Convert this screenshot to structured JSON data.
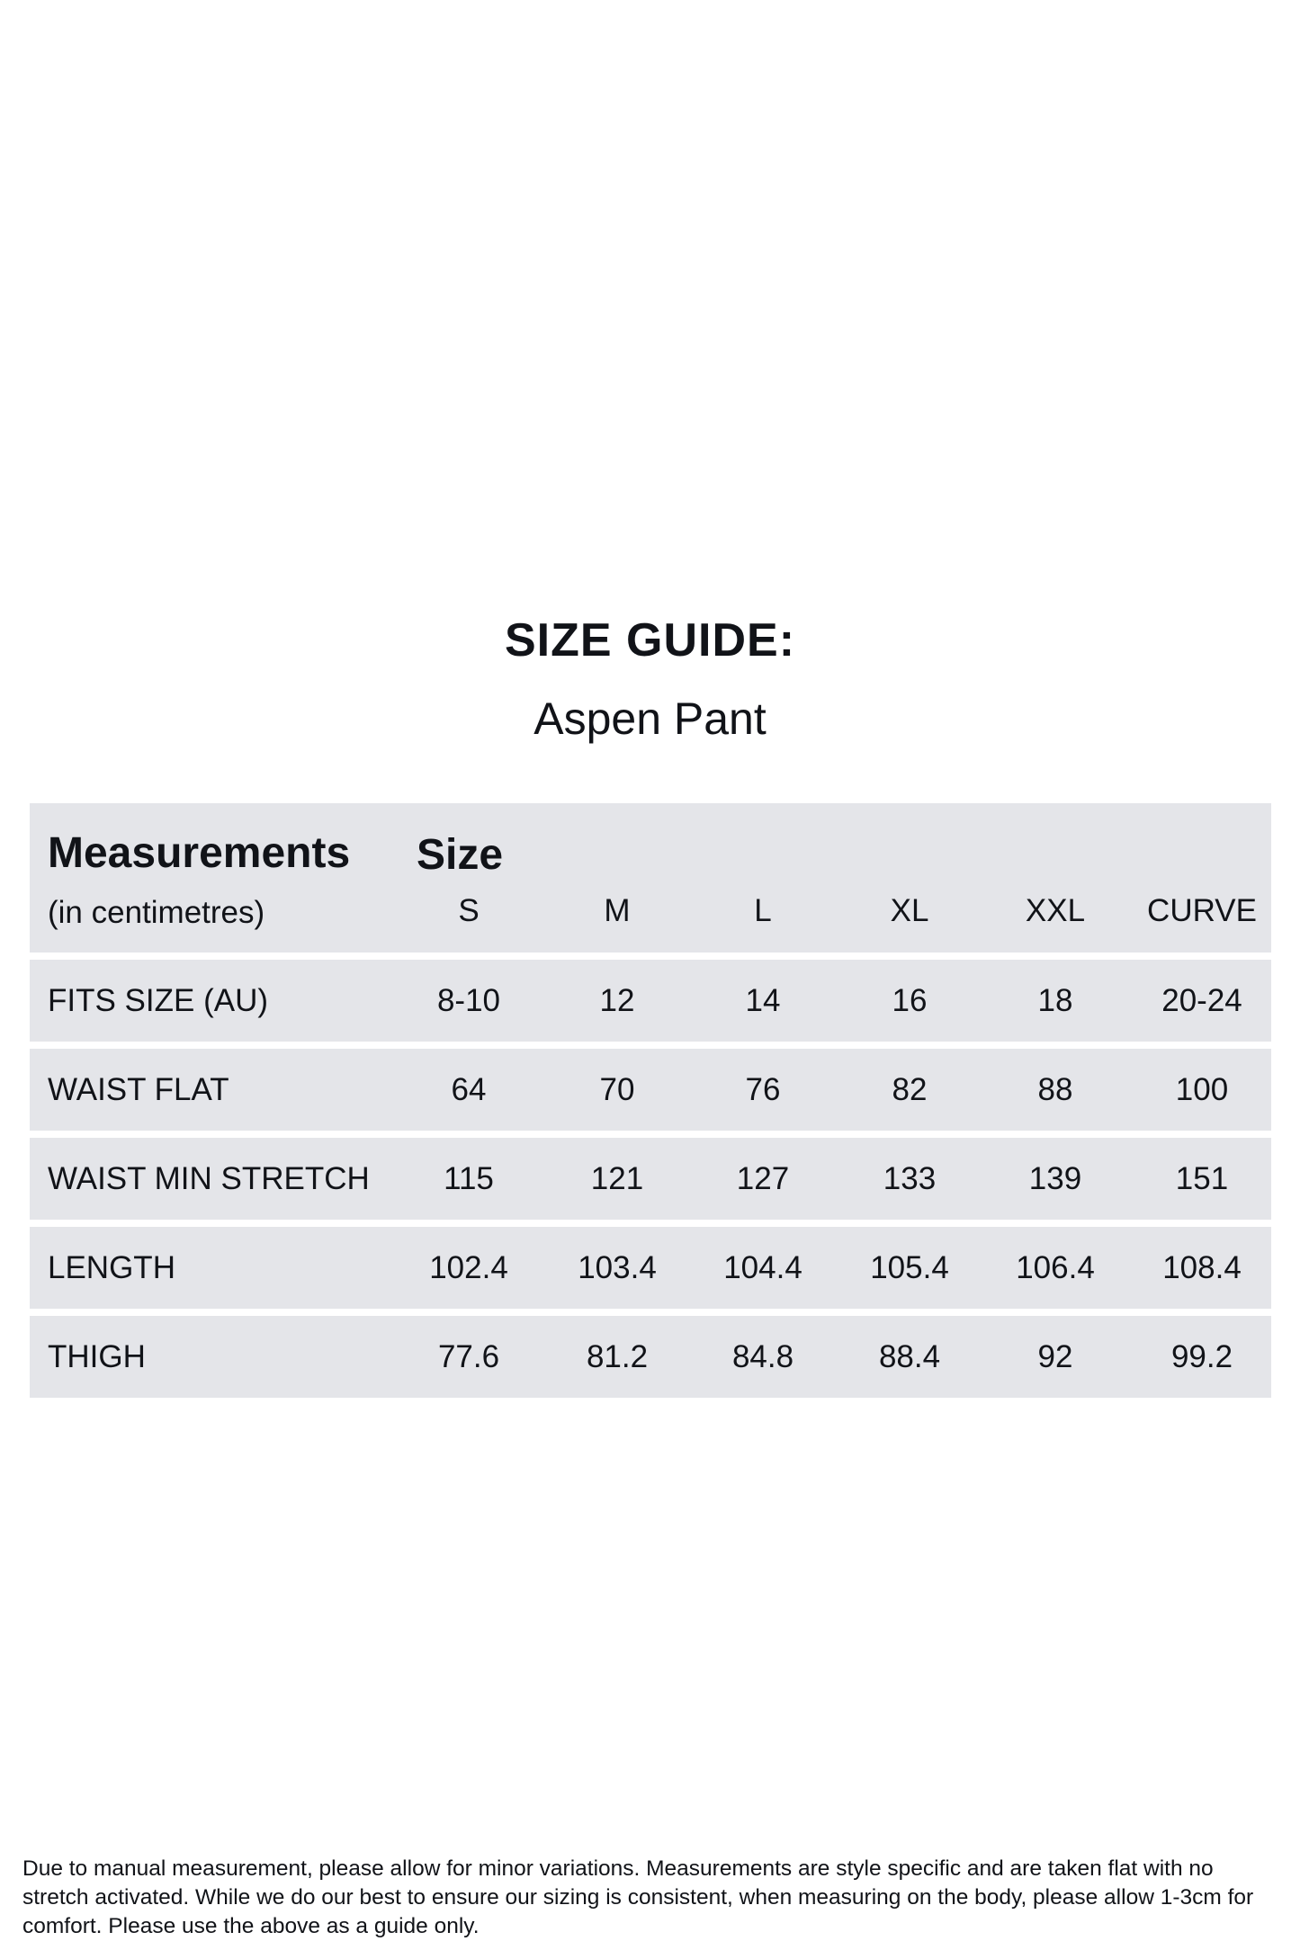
{
  "title": "SIZE GUIDE:",
  "subtitle": "Aspen Pant",
  "table": {
    "header_label": "Measurements",
    "header_unit": "(in centimetres)",
    "size_label": "Size",
    "sizes": [
      "S",
      "M",
      "L",
      "XL",
      "XXL",
      "CURVE"
    ],
    "rows": [
      {
        "label": "FITS SIZE (AU)",
        "values": [
          "8-10",
          "12",
          "14",
          "16",
          "18",
          "20-24"
        ]
      },
      {
        "label": "WAIST FLAT",
        "values": [
          "64",
          "70",
          "76",
          "82",
          "88",
          "100"
        ]
      },
      {
        "label": "WAIST MIN STRETCH",
        "values": [
          "115",
          "121",
          "127",
          "133",
          "139",
          "151"
        ]
      },
      {
        "label": "LENGTH",
        "values": [
          "102.4",
          "103.4",
          "104.4",
          "105.4",
          "106.4",
          "108.4"
        ]
      },
      {
        "label": "THIGH",
        "values": [
          "77.6",
          "81.2",
          "84.8",
          "88.4",
          "92",
          "99.2"
        ]
      }
    ]
  },
  "footer": "Due to manual measurement, please allow for minor variations. Measurements are style specific and are taken flat with no stretch activated. While we do our best to ensure our sizing is consistent, when measuring on the body, please allow 1-3cm for comfort. Please use the above as a guide only.",
  "colors": {
    "row_background": "#e4e5e9",
    "text": "#111318"
  }
}
